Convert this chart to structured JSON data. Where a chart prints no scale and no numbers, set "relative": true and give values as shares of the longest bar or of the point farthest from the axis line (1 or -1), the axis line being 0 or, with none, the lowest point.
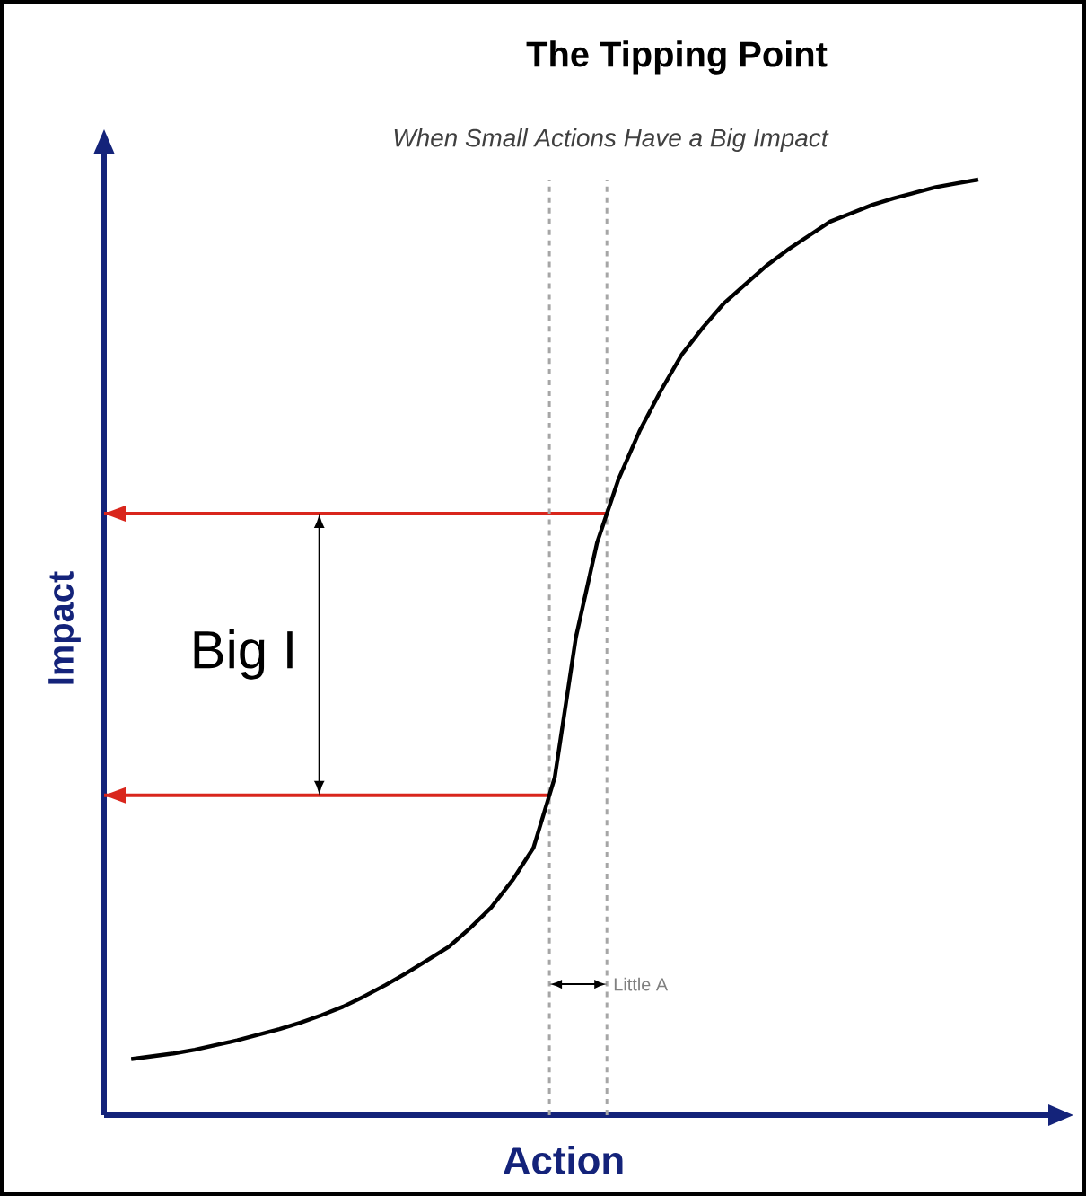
{
  "chart_data": {
    "type": "line",
    "title": "The Tipping Point",
    "subtitle": "When Small Actions Have a Big Impact",
    "xlabel": "Action",
    "ylabel": "Impact",
    "relative": true,
    "tick_labels": false,
    "categories": [
      null,
      null,
      null,
      null,
      null,
      null,
      null,
      null,
      null,
      null,
      null,
      null,
      null,
      null,
      null,
      null,
      null,
      null,
      null,
      null,
      null,
      null,
      null,
      null,
      null,
      null,
      null,
      null,
      null,
      null,
      null,
      null,
      null,
      null,
      null,
      null,
      null,
      null,
      null,
      null,
      null
    ],
    "series": [
      {
        "color": "#000000",
        "values": [
          0.06,
          0.063,
          0.066,
          0.07,
          0.075,
          0.08,
          0.086,
          0.092,
          0.099,
          0.107,
          0.116,
          0.127,
          0.139,
          0.152,
          0.166,
          0.18,
          0.2,
          0.222,
          0.251,
          0.286,
          0.361,
          0.511,
          0.612,
          0.679,
          0.731,
          0.774,
          0.813,
          0.842,
          0.868,
          0.888,
          0.908,
          0.925,
          0.94,
          0.955,
          0.964,
          0.973,
          0.98,
          0.986,
          0.992,
          0.996,
          1
        ]
      }
    ],
    "ref_lines": [
      {
        "axis": "y",
        "value": 0.643,
        "color": "#d9261c"
      },
      {
        "axis": "y",
        "value": 0.342,
        "color": "#d9261c"
      }
    ],
    "annotations": [
      "Big I",
      "Little A"
    ]
  }
}
